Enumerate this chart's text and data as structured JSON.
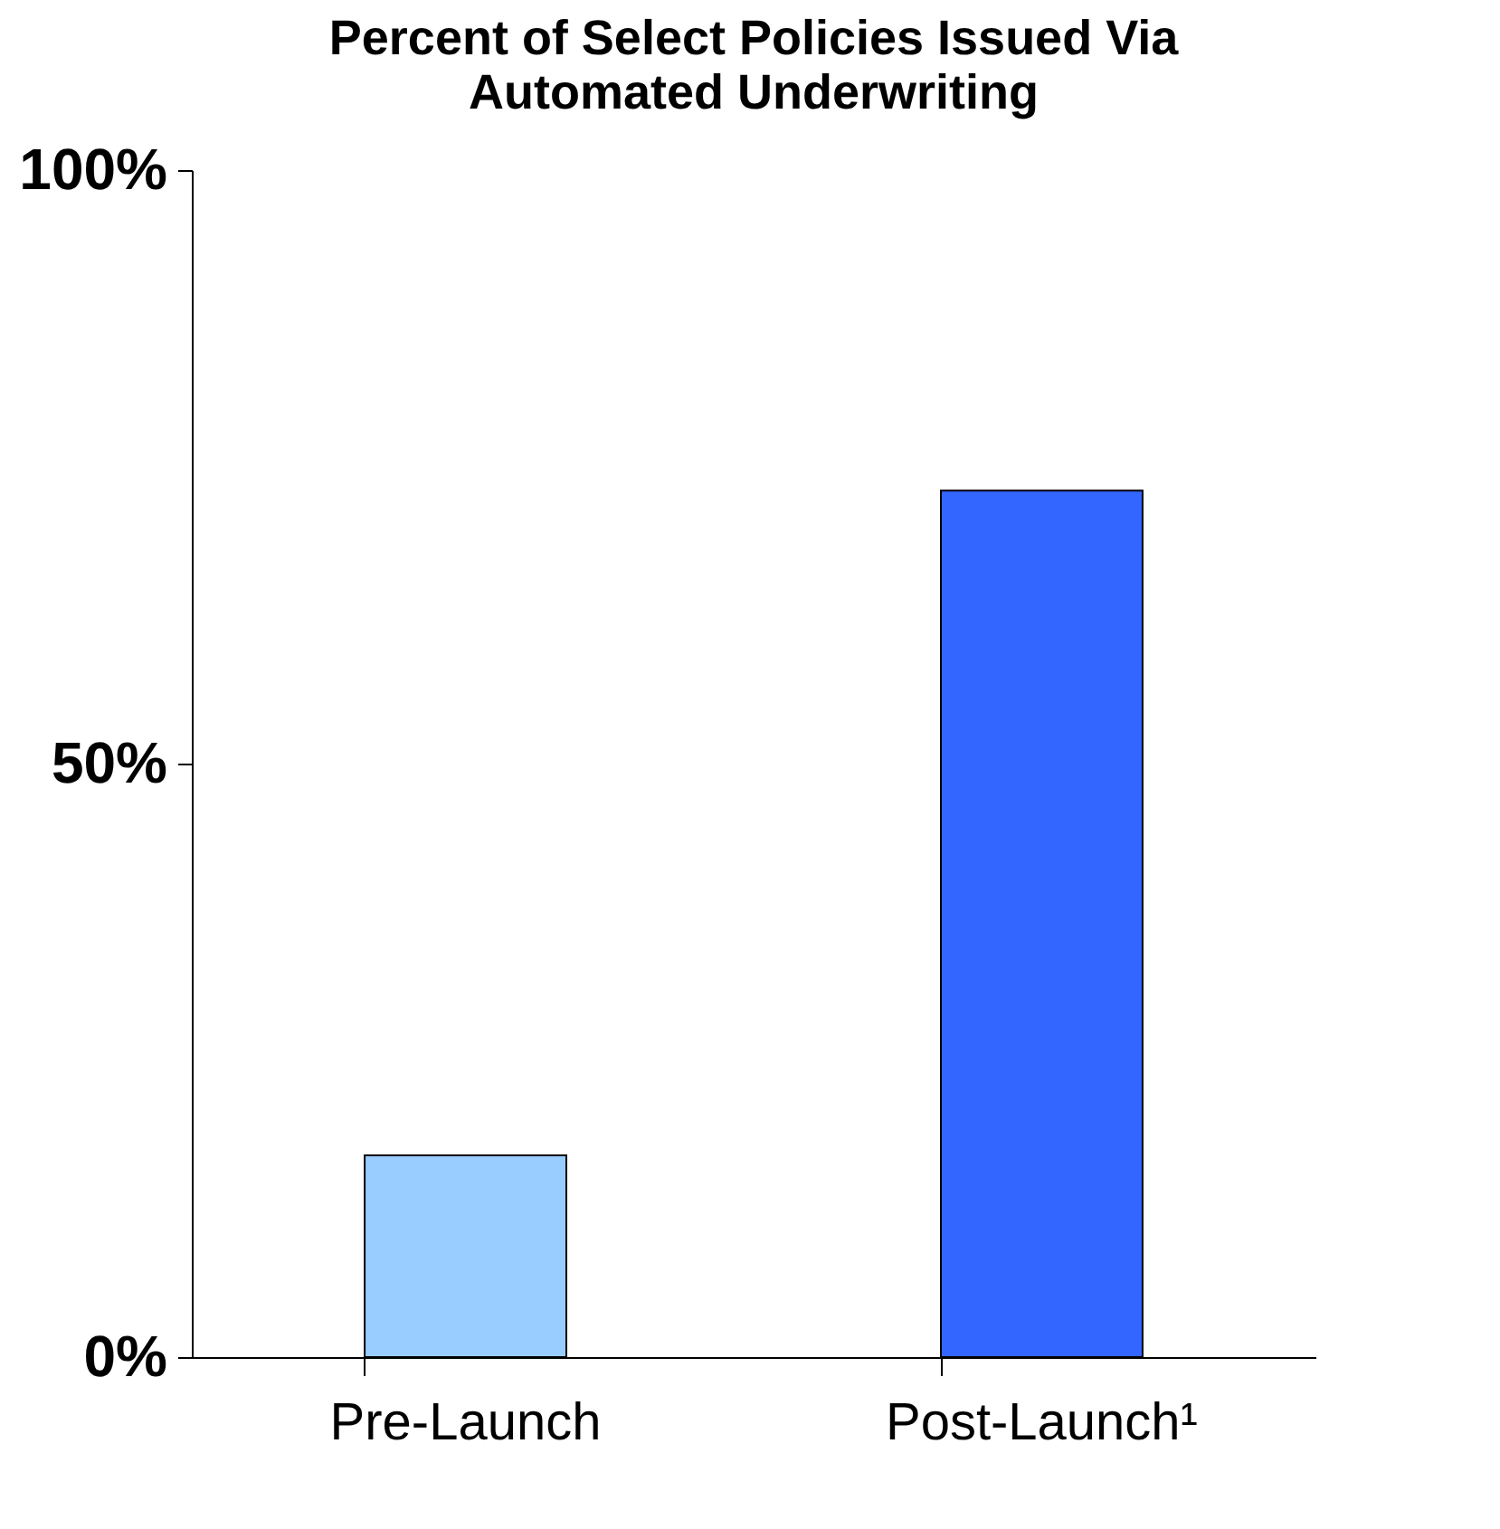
{
  "chart_data": {
    "type": "bar",
    "title": "Percent of Select Policies Issued Via\nAutomated Underwriting",
    "categories": [
      "Pre-Launch",
      "Post-Launch¹"
    ],
    "values": [
      17,
      73
    ],
    "colors": [
      "#99ccff",
      "#3366ff"
    ],
    "ylim": [
      0,
      100
    ],
    "yticks": [
      {
        "value": 0,
        "label": "0%"
      },
      {
        "value": 50,
        "label": "50%"
      },
      {
        "value": 100,
        "label": "100%"
      }
    ],
    "grid": false
  }
}
